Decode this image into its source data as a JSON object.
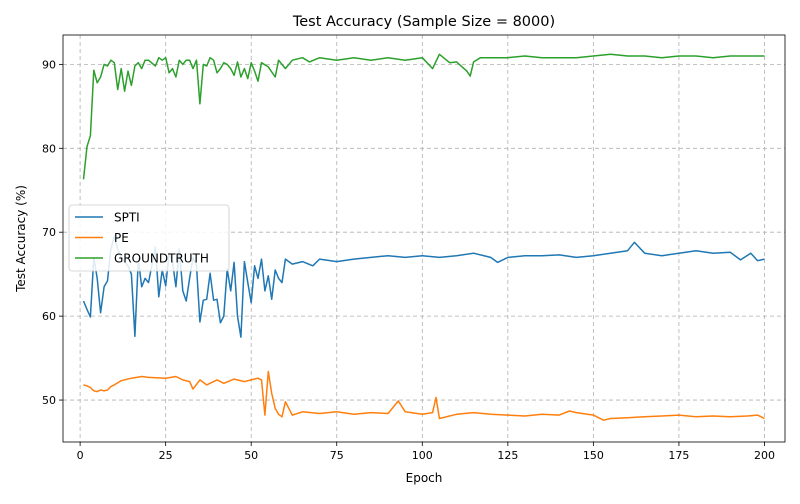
{
  "chart_data": {
    "type": "line",
    "title": "Test Accuracy (Sample Size = 8000)",
    "xlabel": "Epoch",
    "ylabel": "Test Accuracy (%)",
    "xlim": [
      -5,
      206
    ],
    "ylim": [
      45.0,
      93.5
    ],
    "xticks": [
      0,
      25,
      50,
      75,
      100,
      125,
      150,
      175,
      200
    ],
    "yticks": [
      50,
      60,
      70,
      80,
      90
    ],
    "grid": true,
    "legend_position": "center-left",
    "series": [
      {
        "name": "SPTI",
        "color": "#1f77b4",
        "x": [
          1,
          2,
          3,
          4,
          5,
          6,
          7,
          8,
          9,
          10,
          11,
          12,
          13,
          14,
          15,
          16,
          17,
          18,
          19,
          20,
          22,
          23,
          24,
          25,
          26,
          27,
          28,
          29,
          30,
          31,
          32,
          33,
          34,
          35,
          36,
          37,
          38,
          39,
          40,
          41,
          42,
          43,
          44,
          45,
          46,
          47,
          48,
          49,
          50,
          51,
          52,
          53,
          54,
          55,
          56,
          57,
          58,
          59,
          60,
          62,
          65,
          68,
          70,
          75,
          80,
          85,
          90,
          95,
          100,
          105,
          110,
          115,
          120,
          122,
          125,
          130,
          135,
          140,
          145,
          150,
          155,
          160,
          162,
          165,
          170,
          175,
          180,
          185,
          190,
          193,
          196,
          198,
          200
        ],
        "y": [
          61.8,
          60.8,
          59.9,
          67.0,
          64.5,
          60.4,
          63.5,
          64.2,
          68.0,
          69.5,
          68.0,
          67.0,
          66.5,
          66.0,
          65.0,
          57.6,
          66.8,
          63.5,
          64.5,
          64.0,
          68.2,
          62.3,
          65.5,
          63.6,
          67.5,
          66.5,
          63.5,
          68.0,
          63.0,
          61.8,
          64.5,
          67.0,
          66.0,
          59.3,
          61.9,
          62.0,
          65.1,
          61.9,
          62.0,
          59.2,
          60.0,
          65.6,
          63.0,
          66.4,
          60.0,
          57.5,
          66.5,
          64.0,
          61.6,
          66.0,
          64.5,
          66.8,
          63.0,
          64.8,
          62.0,
          65.5,
          64.5,
          64.0,
          66.8,
          66.2,
          66.5,
          66.0,
          66.8,
          66.5,
          66.8,
          67.0,
          67.2,
          67.0,
          67.2,
          67.0,
          67.2,
          67.5,
          67.0,
          66.4,
          67.0,
          67.2,
          67.2,
          67.3,
          67.0,
          67.2,
          67.5,
          67.8,
          68.8,
          67.5,
          67.2,
          67.5,
          67.8,
          67.5,
          67.6,
          66.7,
          67.5,
          66.6,
          66.8
        ]
      },
      {
        "name": "PE",
        "color": "#ff7f0e",
        "x": [
          1,
          2,
          3,
          4,
          5,
          6,
          7,
          8,
          9,
          10,
          12,
          15,
          18,
          20,
          25,
          28,
          30,
          32,
          33,
          35,
          37,
          40,
          42,
          45,
          48,
          50,
          52,
          53,
          54,
          55,
          56,
          57,
          58,
          59,
          60,
          62,
          65,
          70,
          75,
          80,
          85,
          90,
          93,
          95,
          100,
          103,
          104,
          105,
          110,
          115,
          120,
          125,
          130,
          135,
          140,
          143,
          145,
          150,
          153,
          155,
          160,
          165,
          170,
          175,
          180,
          185,
          190,
          195,
          198,
          200
        ],
        "y": [
          51.8,
          51.7,
          51.5,
          51.1,
          51.0,
          51.2,
          51.1,
          51.2,
          51.6,
          51.8,
          52.3,
          52.6,
          52.8,
          52.7,
          52.6,
          52.8,
          52.4,
          52.2,
          51.3,
          52.4,
          51.8,
          52.4,
          52.0,
          52.5,
          52.2,
          52.4,
          52.6,
          52.4,
          48.2,
          53.4,
          50.8,
          49.0,
          48.3,
          48.0,
          49.8,
          48.2,
          48.6,
          48.4,
          48.6,
          48.3,
          48.5,
          48.4,
          49.9,
          48.6,
          48.3,
          48.5,
          50.3,
          47.8,
          48.3,
          48.5,
          48.3,
          48.2,
          48.1,
          48.3,
          48.2,
          48.7,
          48.5,
          48.2,
          47.6,
          47.8,
          47.9,
          48.0,
          48.1,
          48.2,
          48.0,
          48.1,
          48.0,
          48.1,
          48.2,
          47.8
        ]
      },
      {
        "name": "GROUNDTRUTH",
        "color": "#2ca02c",
        "x": [
          1,
          2,
          3,
          4,
          5,
          6,
          7,
          8,
          9,
          10,
          11,
          12,
          13,
          14,
          15,
          16,
          17,
          18,
          19,
          20,
          22,
          23,
          24,
          25,
          26,
          27,
          28,
          29,
          30,
          31,
          32,
          33,
          34,
          35,
          36,
          37,
          38,
          39,
          40,
          41,
          42,
          43,
          44,
          45,
          46,
          47,
          48,
          49,
          50,
          51,
          52,
          53,
          55,
          57,
          58,
          60,
          62,
          65,
          67,
          70,
          75,
          80,
          85,
          90,
          95,
          100,
          103,
          105,
          108,
          110,
          113,
          114,
          115,
          117,
          120,
          125,
          130,
          135,
          140,
          145,
          150,
          155,
          160,
          165,
          170,
          175,
          180,
          185,
          190,
          195,
          200
        ],
        "y": [
          76.3,
          80.2,
          81.5,
          89.3,
          87.8,
          88.5,
          90.0,
          89.8,
          90.5,
          90.2,
          87.0,
          89.5,
          86.8,
          89.2,
          87.5,
          89.8,
          90.2,
          89.5,
          90.5,
          90.5,
          89.8,
          90.8,
          90.5,
          90.8,
          89.0,
          89.5,
          88.5,
          90.5,
          90.0,
          90.5,
          90.5,
          89.5,
          90.5,
          85.3,
          90.0,
          89.8,
          90.8,
          90.5,
          89.0,
          89.5,
          90.2,
          90.0,
          89.5,
          88.7,
          90.3,
          88.5,
          89.5,
          88.3,
          90.2,
          89.2,
          88.0,
          90.2,
          89.7,
          88.5,
          90.5,
          89.5,
          90.5,
          90.8,
          90.3,
          90.8,
          90.5,
          90.8,
          90.5,
          90.8,
          90.5,
          90.8,
          89.5,
          91.2,
          90.2,
          90.3,
          89.2,
          88.6,
          90.3,
          90.8,
          90.8,
          90.8,
          91.0,
          90.8,
          90.8,
          90.8,
          91.0,
          91.2,
          91.0,
          91.0,
          90.8,
          91.0,
          91.0,
          90.8,
          91.0,
          91.0,
          91.0
        ]
      }
    ]
  }
}
